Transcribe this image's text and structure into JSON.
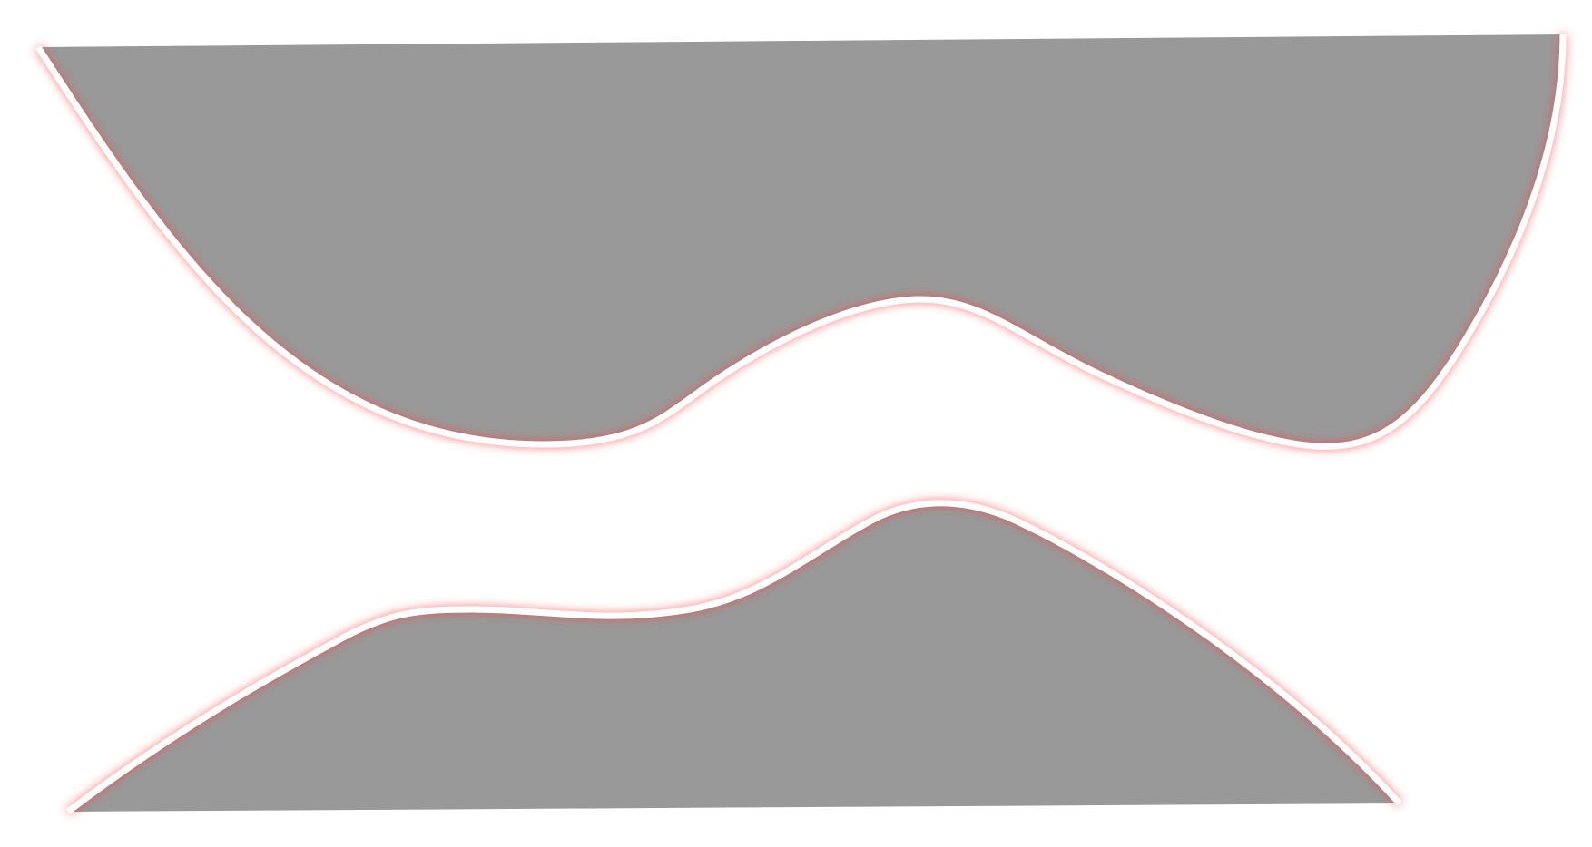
{
  "canvas": {
    "background": "#ffffff"
  },
  "style": {
    "fill_color": "#999999",
    "stroke_color": "#ffffff",
    "glow_color": "#ff3b3b"
  },
  "shapes": [
    {
      "name": "upper-gray-shape",
      "description_visible_text": ""
    },
    {
      "name": "lower-gray-shape",
      "description_visible_text": ""
    }
  ]
}
